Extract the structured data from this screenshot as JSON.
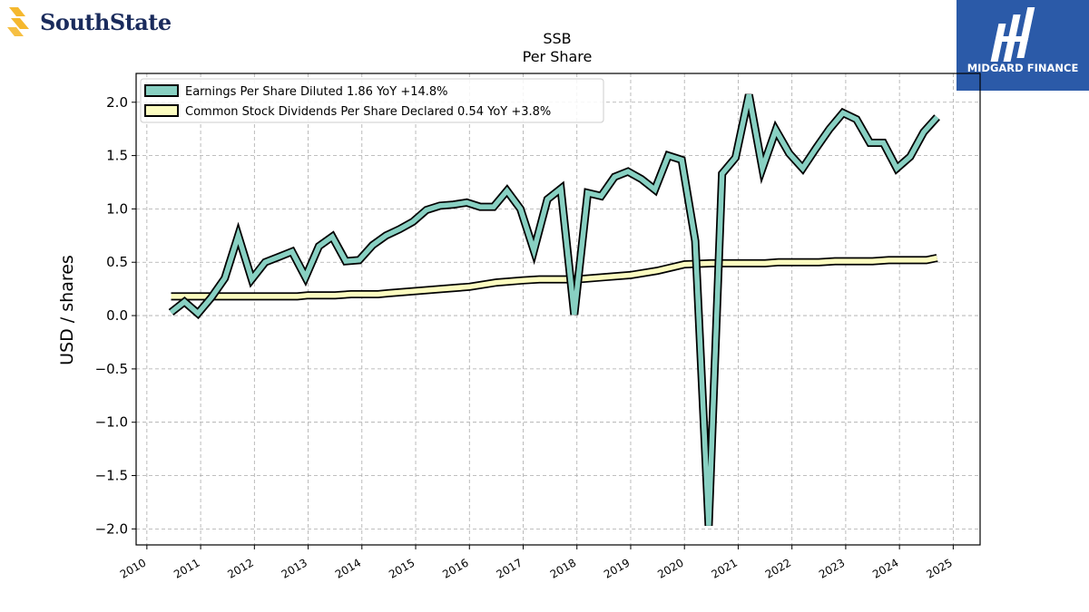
{
  "brand": {
    "name": "SouthState",
    "color": "#1a2b5c",
    "accent": "#f5b82e"
  },
  "partner": {
    "name": "MIDGARD FINANCE",
    "bg": "#2b5aa8"
  },
  "chart_data": {
    "type": "line",
    "title": "SSB",
    "subtitle": "Per  Share",
    "xlabel": "",
    "ylabel": "USD / shares",
    "xlim": [
      2009.8,
      2025.5
    ],
    "ylim": [
      -2.15,
      2.27
    ],
    "yticks": [
      2.0,
      1.5,
      1.0,
      0.5,
      0.0,
      -0.5,
      -1.0,
      -1.5,
      -2.0
    ],
    "ytick_labels": [
      "2.0",
      "1.5",
      "1.0",
      "0.5",
      "0.0",
      "−0.5",
      "−1.0",
      "−1.5",
      "−2.0"
    ],
    "xticks": [
      2010,
      2011,
      2012,
      2013,
      2014,
      2015,
      2016,
      2017,
      2018,
      2019,
      2020,
      2021,
      2022,
      2023,
      2024,
      2025
    ],
    "xtick_labels": [
      "2010",
      "2011",
      "2012",
      "2013",
      "2014",
      "2015",
      "2016",
      "2017",
      "2018",
      "2019",
      "2020",
      "2021",
      "2022",
      "2023",
      "2024",
      "2025"
    ],
    "grid": true,
    "legend_position": "top-left",
    "series": [
      {
        "name": "Earnings Per Share Diluted",
        "legend_label": "Earnings Per Share Diluted  1.86 YoY +14.8%",
        "color": "#88d0c2",
        "x": [
          2010.45,
          2010.7,
          2010.95,
          2011.2,
          2011.45,
          2011.7,
          2011.95,
          2012.2,
          2012.45,
          2012.7,
          2012.95,
          2013.2,
          2013.45,
          2013.7,
          2013.95,
          2014.2,
          2014.45,
          2014.7,
          2014.95,
          2015.2,
          2015.45,
          2015.7,
          2015.95,
          2016.2,
          2016.45,
          2016.7,
          2016.95,
          2017.2,
          2017.45,
          2017.7,
          2017.95,
          2018.2,
          2018.45,
          2018.7,
          2018.95,
          2019.2,
          2019.45,
          2019.7,
          2019.95,
          2020.2,
          2020.45,
          2020.7,
          2020.95,
          2021.2,
          2021.45,
          2021.7,
          2021.95,
          2022.2,
          2022.45,
          2022.7,
          2022.95,
          2023.2,
          2023.45,
          2023.7,
          2023.95,
          2024.2,
          2024.45,
          2024.7
        ],
        "y": [
          0.03,
          0.13,
          0.02,
          0.17,
          0.35,
          0.75,
          0.34,
          0.5,
          0.55,
          0.6,
          0.36,
          0.65,
          0.74,
          0.51,
          0.52,
          0.66,
          0.75,
          0.81,
          0.88,
          0.99,
          1.03,
          1.04,
          1.06,
          1.02,
          1.02,
          1.17,
          1.0,
          0.61,
          1.09,
          1.19,
          0.01,
          1.15,
          1.12,
          1.3,
          1.35,
          1.28,
          1.18,
          1.5,
          1.46,
          0.7,
          -1.97,
          1.33,
          1.48,
          2.07,
          1.38,
          1.74,
          1.52,
          1.38,
          1.57,
          1.75,
          1.9,
          1.84,
          1.62,
          1.62,
          1.38,
          1.49,
          1.72,
          1.86
        ]
      },
      {
        "name": "Common Stock Dividends Per Share Declared",
        "legend_label": "Common Stock Dividends Per Share Declared  0.54 YoY +3.8%",
        "color": "#fcfcc0",
        "x": [
          2010.45,
          2011.0,
          2011.5,
          2012.0,
          2012.5,
          2012.8,
          2013.0,
          2013.5,
          2013.8,
          2014.0,
          2014.3,
          2014.5,
          2015.0,
          2015.5,
          2016.0,
          2016.5,
          2017.0,
          2017.3,
          2017.5,
          2018.0,
          2018.5,
          2019.0,
          2019.5,
          2019.75,
          2020.0,
          2020.5,
          2021.0,
          2021.5,
          2021.75,
          2022.0,
          2022.5,
          2022.8,
          2023.0,
          2023.5,
          2023.8,
          2024.0,
          2024.5,
          2024.7
        ],
        "y": [
          0.18,
          0.18,
          0.18,
          0.18,
          0.18,
          0.18,
          0.19,
          0.19,
          0.2,
          0.2,
          0.2,
          0.21,
          0.23,
          0.25,
          0.27,
          0.31,
          0.33,
          0.34,
          0.34,
          0.34,
          0.36,
          0.38,
          0.42,
          0.45,
          0.48,
          0.49,
          0.49,
          0.49,
          0.5,
          0.5,
          0.5,
          0.51,
          0.51,
          0.51,
          0.52,
          0.52,
          0.52,
          0.54
        ]
      }
    ]
  }
}
